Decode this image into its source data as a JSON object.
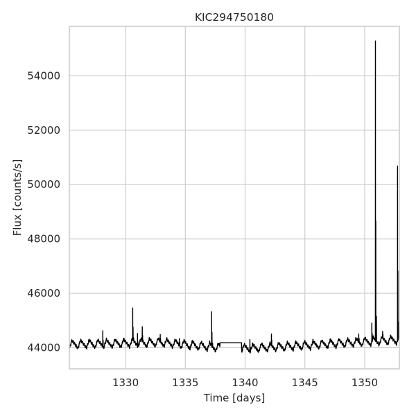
{
  "chart_data": {
    "type": "line",
    "title": "KIC294750180",
    "xlabel": "Time [days]",
    "ylabel": "Flux [counts/s]",
    "xlim": [
      1325.3,
      1352.9
    ],
    "ylim": [
      43220,
      55820
    ],
    "xticks": [
      1330,
      1335,
      1340,
      1345,
      1350
    ],
    "yticks": [
      44000,
      46000,
      48000,
      50000,
      52000,
      54000
    ],
    "grid": true,
    "legend": "none",
    "series_color": "#000000",
    "oscillation": {
      "period_days": 0.72,
      "amplitude": 150,
      "baseline": 44120
    },
    "gap": {
      "start": 1337.9,
      "end": 1339.7,
      "flux": 44180
    },
    "flares": [
      {
        "x": 1328.1,
        "y": 44620
      },
      {
        "x": 1330.6,
        "y": 45460
      },
      {
        "x": 1331.0,
        "y": 44520
      },
      {
        "x": 1331.4,
        "y": 44770
      },
      {
        "x": 1332.9,
        "y": 44480
      },
      {
        "x": 1334.5,
        "y": 44330
      },
      {
        "x": 1337.2,
        "y": 45320
      },
      {
        "x": 1340.4,
        "y": 44300
      },
      {
        "x": 1342.2,
        "y": 44500
      },
      {
        "x": 1349.5,
        "y": 44500
      },
      {
        "x": 1350.6,
        "y": 44900
      },
      {
        "x": 1350.9,
        "y": 55280
      },
      {
        "x": 1351.5,
        "y": 44600
      },
      {
        "x": 1352.75,
        "y": 50680
      }
    ]
  }
}
